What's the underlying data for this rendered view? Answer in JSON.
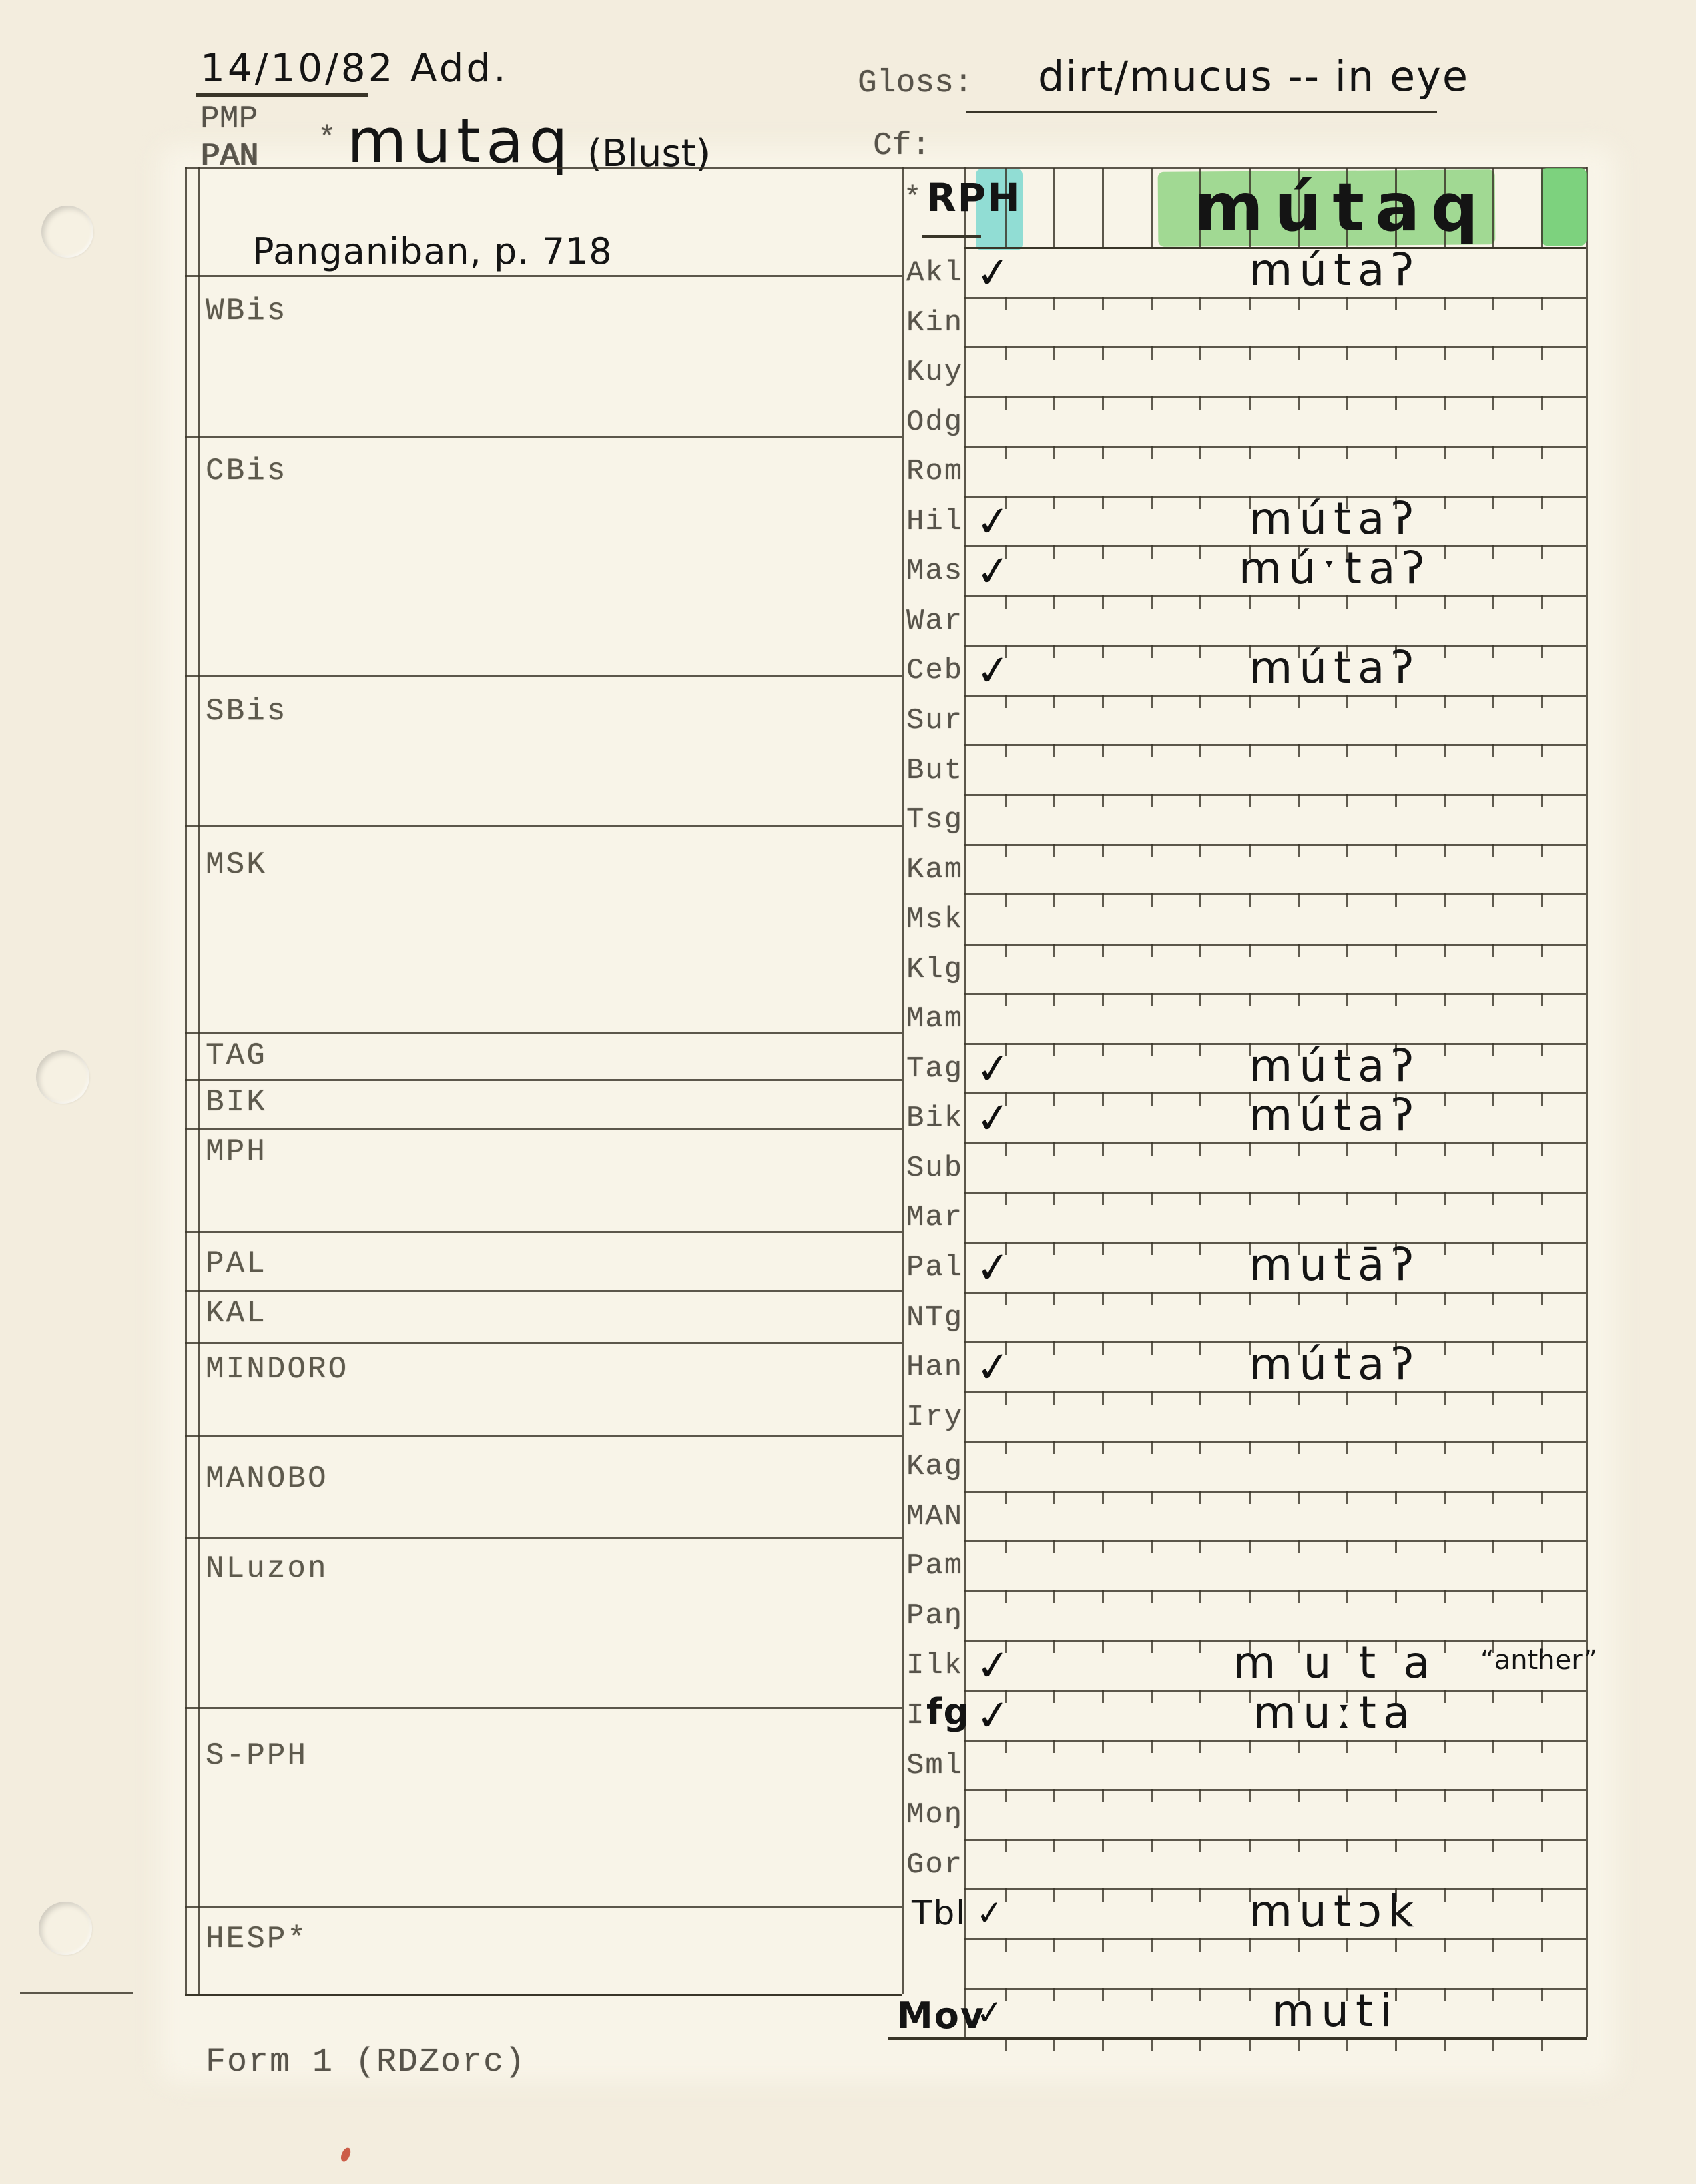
{
  "page": {
    "date_note": "14/10/82 Add.",
    "proto_label_1": "PMP",
    "proto_label_2": "PAN",
    "asterisk": "*",
    "reconstruction": "mutaq",
    "reconstruction_source": "(Blust)",
    "gloss_label": "Gloss:",
    "gloss_value": "dirt/mucus -- in eye",
    "cf_label": "Cf:",
    "reference": "Panganiban, p. 718",
    "form_footer": "Form 1 (RDZorc)"
  },
  "left_sections": [
    {
      "label": "WBis"
    },
    {
      "label": "CBis"
    },
    {
      "label": "SBis"
    },
    {
      "label": "MSK"
    },
    {
      "label": "TAG"
    },
    {
      "label": "BIK"
    },
    {
      "label": "MPH"
    },
    {
      "label": "PAL"
    },
    {
      "label": "KAL"
    },
    {
      "label": "MINDORO"
    },
    {
      "label": "MANOBO"
    },
    {
      "label": "NLuzon"
    },
    {
      "label": "S-PPH"
    },
    {
      "label": "HESP*"
    }
  ],
  "grid": {
    "header_row": {
      "asterisk": "*",
      "label": "RPH",
      "form": "mútaq"
    },
    "rows": [
      {
        "label": "Akl",
        "check": true,
        "form": "mútaʔ"
      },
      {
        "label": "Kin"
      },
      {
        "label": "Kuy"
      },
      {
        "label": "Odg"
      },
      {
        "label": "Rom"
      },
      {
        "label": "Hil",
        "check": true,
        "form": "mútaʔ"
      },
      {
        "label": "Mas",
        "check": true,
        "form": "múˑtaʔ"
      },
      {
        "label": "War"
      },
      {
        "label": "Ceb",
        "check": true,
        "form": "mútaʔ"
      },
      {
        "label": "Sur"
      },
      {
        "label": "But"
      },
      {
        "label": "Tsg"
      },
      {
        "label": "Kam"
      },
      {
        "label": "Msk"
      },
      {
        "label": "Klg"
      },
      {
        "label": "Mam"
      },
      {
        "label": "Tag",
        "check": true,
        "form": "mútaʔ"
      },
      {
        "label": "Bik",
        "check": true,
        "form": "mútaʔ"
      },
      {
        "label": "Sub"
      },
      {
        "label": "Mar"
      },
      {
        "label": "Pal",
        "check": true,
        "form": "mutāʔ"
      },
      {
        "label": "NTg"
      },
      {
        "label": "Han",
        "check": true,
        "form": "mútaʔ"
      },
      {
        "label": "Iry"
      },
      {
        "label": "Kag"
      },
      {
        "label": "MAN"
      },
      {
        "label": "Pam"
      },
      {
        "label": "Paŋ"
      },
      {
        "label": "Ilk",
        "check": true,
        "form": "m u t a",
        "note": "“anther”"
      },
      {
        "label": "Ifg",
        "check": true,
        "form": "muːta",
        "label_style": "mixed"
      },
      {
        "label": "Sml"
      },
      {
        "label": "Moŋ"
      },
      {
        "label": "Gor"
      },
      {
        "label": "Tbl",
        "check": true,
        "form": "mutɔk",
        "label_style": "hand",
        "check_style": "light"
      },
      {
        "label": ""
      },
      {
        "label": "Mov",
        "check": true,
        "form": "muti",
        "label_style": "hand-bold",
        "check_style": "light"
      }
    ],
    "highlight_colors": {
      "cyan": "#7fd8d0",
      "green": "#7fcf72",
      "green_dark": "#5ec963"
    }
  }
}
